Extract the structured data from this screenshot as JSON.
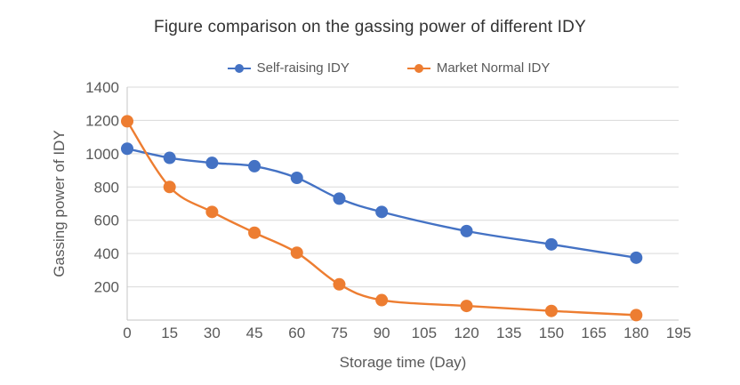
{
  "chart_data": {
    "type": "line",
    "title": "Figure comparison on the gassing power of different IDY",
    "xlabel": "Storage time (Day)",
    "ylabel": "Gassing power of IDY",
    "x": [
      0,
      15,
      30,
      45,
      60,
      75,
      90,
      120,
      150,
      180
    ],
    "series": [
      {
        "name": "Self-raising IDY",
        "color": "#4472C4",
        "values": [
          1030,
          975,
          945,
          925,
          855,
          730,
          650,
          535,
          455,
          375
        ]
      },
      {
        "name": "Market Normal IDY",
        "color": "#ED7D31",
        "values": [
          1195,
          800,
          650,
          525,
          405,
          215,
          120,
          85,
          55,
          30
        ]
      }
    ],
    "x_ticks": [
      0,
      15,
      30,
      45,
      60,
      75,
      90,
      105,
      120,
      135,
      150,
      165,
      180,
      195
    ],
    "y_ticks": [
      200,
      400,
      600,
      800,
      1000,
      1200,
      1400
    ],
    "xlim": [
      0,
      195
    ],
    "ylim": [
      0,
      1400
    ],
    "grid": "horizontal",
    "legend_position": "top",
    "line_style": "smooth",
    "marker": "circle",
    "colors": {
      "grid": "#D9D9D9",
      "axis": "#C6C6C6",
      "tick_text": "#595959",
      "title_text": "#333333",
      "axis_title_text": "#595959",
      "legend_text": "#595959",
      "background": "#FFFFFF"
    }
  }
}
